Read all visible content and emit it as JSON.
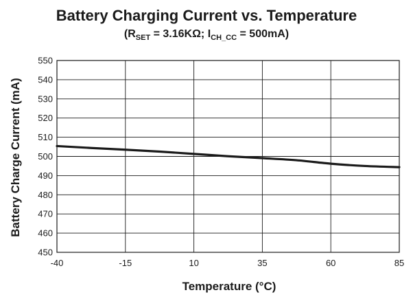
{
  "chart_data": {
    "type": "line",
    "title": "Battery Charging Current vs. Temperature",
    "subtitle": {
      "open": "(R",
      "rset_sub": "SET",
      "mid": " = 3.16KΩ; I",
      "ich_sub": "CH_CC",
      "close": " = 500mA)"
    },
    "xlabel": "Temperature (°C)",
    "ylabel": "Battery Charge Current (mA)",
    "xlim": [
      -40,
      85
    ],
    "ylim": [
      450,
      550
    ],
    "x_ticks": [
      -40,
      -15,
      10,
      35,
      60,
      85
    ],
    "y_ticks": [
      450,
      460,
      470,
      480,
      490,
      500,
      510,
      520,
      530,
      540,
      550
    ],
    "x_tick_labels": [
      "-40",
      "-15",
      "10",
      "35",
      "60",
      "85"
    ],
    "y_tick_labels": [
      "450",
      "460",
      "470",
      "480",
      "490",
      "500",
      "510",
      "520",
      "530",
      "540",
      "550"
    ],
    "grid": true,
    "series": [
      {
        "x": [
          -40,
          -27.5,
          -15,
          -2.5,
          10,
          22.5,
          35,
          47.5,
          60,
          72.5,
          85
        ],
        "y": [
          505.4,
          504.4,
          503.5,
          502.5,
          501.3,
          500.1,
          499.1,
          498.0,
          496.2,
          495.0,
          494.4
        ]
      }
    ]
  }
}
